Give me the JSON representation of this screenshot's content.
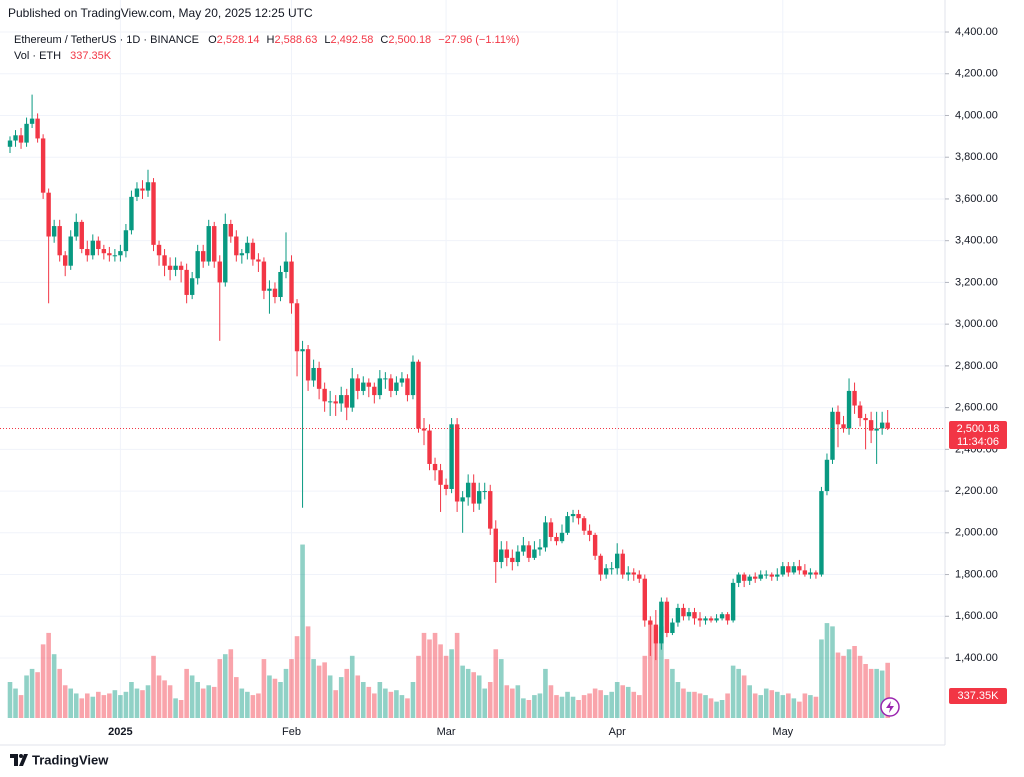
{
  "chart_data": {
    "type": "candlestick",
    "published": "Published on TradingView.com, May 20, 2025 12:25 UTC",
    "symbol": "Ethereum / TetherUS · 1D · BINANCE",
    "ohlc_letters": [
      "O",
      "H",
      "L",
      "C"
    ],
    "last_labels": [
      "2,528.14",
      "2,588.63",
      "2,492.58",
      "2,500.18"
    ],
    "change": "−27.96 (−1.11%)",
    "volume_title": "Vol · ETH",
    "volume_label": "337.35K",
    "countdown": "11:34:06",
    "brand": "TradingView",
    "up_color": "#089981",
    "down_color": "#f23645",
    "grid": true,
    "ylim": [
      1055,
      4448
    ],
    "yticks": [
      {
        "value": 1400,
        "label": "1,400.00"
      },
      {
        "value": 1600,
        "label": "1,600.00"
      },
      {
        "value": 1800,
        "label": "1,800.00"
      },
      {
        "value": 2000,
        "label": "2,000.00"
      },
      {
        "value": 2200,
        "label": "2,200.00"
      },
      {
        "value": 2400,
        "label": "2,400.00"
      },
      {
        "value": 2600,
        "label": "2,600.00"
      },
      {
        "value": 2800,
        "label": "2,800.00"
      },
      {
        "value": 3000,
        "label": "3,000.00"
      },
      {
        "value": 3200,
        "label": "3,200.00"
      },
      {
        "value": 3400,
        "label": "3,400.00"
      },
      {
        "value": 3600,
        "label": "3,600.00"
      },
      {
        "value": 3800,
        "label": "3,800.00"
      },
      {
        "value": 4000,
        "label": "4,000.00"
      },
      {
        "value": 4200,
        "label": "4,200.00"
      },
      {
        "value": 4400,
        "label": "4,400.00"
      }
    ],
    "xticks": [
      {
        "value": 20,
        "label": "2025"
      },
      {
        "value": 51,
        "label": "Feb"
      },
      {
        "value": 79,
        "label": "Mar"
      },
      {
        "value": 110,
        "label": "Apr"
      },
      {
        "value": 140,
        "label": "May"
      }
    ],
    "volume_lim": [
      0,
      2200000
    ],
    "open": [
      3850,
      3880,
      3905,
      3870,
      3960,
      3985,
      3890,
      3630,
      3420,
      3470,
      3330,
      3280,
      3420,
      3490,
      3360,
      3330,
      3400,
      3360,
      3340,
      3330,
      3330,
      3350,
      3450,
      3610,
      3650,
      3640,
      3680,
      3380,
      3330,
      3280,
      3260,
      3280,
      3260,
      3140,
      3220,
      3350,
      3300,
      3470,
      3300,
      3200,
      3480,
      3420,
      3330,
      3340,
      3390,
      3310,
      3300,
      3160,
      3170,
      3130,
      3250,
      3300,
      3100,
      2870,
      2880,
      2730,
      2790,
      2690,
      2630,
      2630,
      2620,
      2660,
      2600,
      2740,
      2680,
      2720,
      2700,
      2660,
      2740,
      2740,
      2680,
      2720,
      2740,
      2660,
      2820,
      2500,
      2490,
      2330,
      2300,
      2230,
      2210,
      2520,
      2150,
      2170,
      2240,
      2140,
      2200,
      2200,
      2020,
      1860,
      1920,
      1880,
      1860,
      1910,
      1940,
      1880,
      1920,
      1930,
      2050,
      1980,
      1960,
      2000,
      2080,
      2090,
      2070,
      2010,
      1990,
      1890,
      1800,
      1830,
      1830,
      1900,
      1800,
      1810,
      1800,
      1780,
      1580,
      1560,
      1470,
      1670,
      1520,
      1570,
      1640,
      1600,
      1620,
      1590,
      1580,
      1590,
      1580,
      1590,
      1610,
      1580,
      1760,
      1800,
      1770,
      1790,
      1780,
      1800,
      1800,
      1790,
      1800,
      1840,
      1810,
      1840,
      1820,
      1800,
      1810,
      1800,
      2200,
      2350,
      2580,
      2520,
      2500,
      2680,
      2610,
      2550,
      2540,
      2490,
      2500,
      2528.14
    ],
    "high": [
      3900,
      3930,
      3940,
      3990,
      4100,
      4010,
      3910,
      3650,
      3500,
      3500,
      3350,
      3450,
      3530,
      3500,
      3400,
      3430,
      3420,
      3380,
      3370,
      3360,
      3380,
      3480,
      3640,
      3680,
      3690,
      3740,
      3700,
      3400,
      3360,
      3320,
      3320,
      3300,
      3290,
      3250,
      3380,
      3380,
      3500,
      3490,
      3330,
      3530,
      3500,
      3450,
      3360,
      3420,
      3410,
      3340,
      3320,
      3210,
      3200,
      3280,
      3440,
      3330,
      3120,
      2920,
      2900,
      2830,
      2820,
      2720,
      2680,
      2660,
      2700,
      2690,
      2790,
      2760,
      2750,
      2740,
      2720,
      2780,
      2770,
      2760,
      2750,
      2770,
      2760,
      2850,
      2830,
      2550,
      2520,
      2360,
      2330,
      2260,
      2550,
      2550,
      2200,
      2280,
      2280,
      2240,
      2240,
      2230,
      2060,
      1960,
      1960,
      1920,
      1940,
      1980,
      1960,
      1960,
      1970,
      2080,
      2070,
      2000,
      2040,
      2100,
      2110,
      2110,
      2080,
      2040,
      2000,
      1900,
      1850,
      1860,
      1950,
      1920,
      1840,
      1830,
      1820,
      1800,
      1600,
      1630,
      1690,
      1690,
      1590,
      1660,
      1660,
      1640,
      1640,
      1620,
      1600,
      1600,
      1610,
      1620,
      1620,
      1780,
      1810,
      1810,
      1800,
      1810,
      1820,
      1820,
      1810,
      1830,
      1860,
      1860,
      1860,
      1870,
      1850,
      1830,
      1820,
      2220,
      2380,
      2600,
      2610,
      2560,
      2740,
      2720,
      2630,
      2570,
      2580,
      2580,
      2580,
      2588.63
    ],
    "low": [
      3820,
      3850,
      3840,
      3850,
      3940,
      3870,
      3600,
      3100,
      3390,
      3300,
      3230,
      3260,
      3400,
      3340,
      3300,
      3310,
      3330,
      3310,
      3300,
      3300,
      3300,
      3320,
      3430,
      3590,
      3600,
      3610,
      3350,
      3280,
      3230,
      3210,
      3230,
      3200,
      3100,
      3120,
      3190,
      3270,
      3280,
      3270,
      2920,
      3180,
      3390,
      3300,
      3290,
      3310,
      3280,
      3250,
      3120,
      3050,
      3100,
      3110,
      3220,
      3050,
      2750,
      2120,
      2680,
      2700,
      2640,
      2580,
      2560,
      2560,
      2580,
      2540,
      2580,
      2640,
      2660,
      2650,
      2620,
      2640,
      2690,
      2650,
      2660,
      2700,
      2630,
      2640,
      2480,
      2420,
      2300,
      2250,
      2100,
      2180,
      2190,
      2100,
      2000,
      2130,
      2100,
      2110,
      2160,
      1990,
      1760,
      1830,
      1840,
      1820,
      1840,
      1890,
      1860,
      1870,
      1890,
      1910,
      1960,
      1940,
      1950,
      1990,
      2050,
      2040,
      1990,
      1960,
      1870,
      1770,
      1780,
      1800,
      1800,
      1780,
      1770,
      1770,
      1760,
      1550,
      1410,
      1390,
      1440,
      1500,
      1510,
      1550,
      1580,
      1580,
      1560,
      1550,
      1560,
      1570,
      1570,
      1580,
      1560,
      1570,
      1740,
      1740,
      1750,
      1760,
      1770,
      1780,
      1770,
      1770,
      1790,
      1790,
      1800,
      1800,
      1790,
      1780,
      1780,
      1790,
      2180,
      2330,
      2410,
      2480,
      2470,
      2570,
      2510,
      2400,
      2430,
      2330,
      2470,
      2492.58
    ],
    "close": [
      3880,
      3905,
      3870,
      3960,
      3985,
      3890,
      3630,
      3420,
      3470,
      3330,
      3280,
      3420,
      3490,
      3360,
      3330,
      3400,
      3360,
      3340,
      3330,
      3330,
      3350,
      3450,
      3610,
      3650,
      3640,
      3680,
      3380,
      3330,
      3280,
      3260,
      3280,
      3260,
      3140,
      3220,
      3350,
      3300,
      3470,
      3300,
      3200,
      3480,
      3420,
      3330,
      3340,
      3390,
      3310,
      3300,
      3160,
      3170,
      3130,
      3250,
      3300,
      3100,
      2870,
      2880,
      2730,
      2790,
      2690,
      2630,
      2630,
      2620,
      2660,
      2600,
      2740,
      2680,
      2720,
      2700,
      2660,
      2740,
      2740,
      2680,
      2720,
      2740,
      2660,
      2820,
      2500,
      2490,
      2330,
      2300,
      2230,
      2210,
      2520,
      2150,
      2170,
      2240,
      2140,
      2200,
      2200,
      2020,
      1860,
      1920,
      1880,
      1860,
      1910,
      1940,
      1880,
      1920,
      1930,
      2050,
      1980,
      1960,
      2000,
      2080,
      2090,
      2070,
      2010,
      1990,
      1890,
      1800,
      1830,
      1830,
      1900,
      1800,
      1810,
      1800,
      1780,
      1580,
      1560,
      1470,
      1670,
      1520,
      1570,
      1640,
      1600,
      1620,
      1590,
      1580,
      1590,
      1580,
      1590,
      1610,
      1580,
      1760,
      1800,
      1770,
      1790,
      1780,
      1800,
      1800,
      1790,
      1800,
      1840,
      1810,
      1840,
      1820,
      1800,
      1810,
      1800,
      2200,
      2350,
      2580,
      2520,
      2500,
      2680,
      2610,
      2550,
      2540,
      2490,
      2500,
      2528.14,
      2500.18
    ],
    "volume": [
      220000,
      180000,
      140000,
      260000,
      300000,
      280000,
      450000,
      520000,
      390000,
      300000,
      200000,
      180000,
      150000,
      120000,
      150000,
      130000,
      160000,
      140000,
      150000,
      170000,
      140000,
      160000,
      220000,
      180000,
      170000,
      200000,
      380000,
      260000,
      230000,
      200000,
      120000,
      110000,
      300000,
      260000,
      220000,
      180000,
      200000,
      190000,
      360000,
      390000,
      420000,
      250000,
      180000,
      160000,
      140000,
      150000,
      360000,
      260000,
      240000,
      220000,
      300000,
      360000,
      500000,
      1060000,
      560000,
      360000,
      320000,
      340000,
      260000,
      170000,
      250000,
      300000,
      380000,
      260000,
      220000,
      190000,
      150000,
      220000,
      180000,
      160000,
      170000,
      140000,
      120000,
      220000,
      380000,
      520000,
      480000,
      520000,
      450000,
      380000,
      420000,
      520000,
      320000,
      300000,
      280000,
      260000,
      180000,
      220000,
      420000,
      360000,
      200000,
      180000,
      200000,
      120000,
      110000,
      140000,
      150000,
      300000,
      200000,
      140000,
      130000,
      160000,
      130000,
      110000,
      140000,
      150000,
      180000,
      170000,
      140000,
      160000,
      220000,
      200000,
      190000,
      160000,
      140000,
      380000,
      580000,
      560000,
      560000,
      360000,
      300000,
      220000,
      180000,
      160000,
      160000,
      150000,
      140000,
      120000,
      100000,
      110000,
      150000,
      320000,
      300000,
      260000,
      200000,
      150000,
      140000,
      180000,
      170000,
      160000,
      140000,
      150000,
      120000,
      100000,
      150000,
      140000,
      130000,
      480000,
      580000,
      560000,
      400000,
      380000,
      420000,
      440000,
      380000,
      330000,
      300000,
      300000,
      290000,
      337350
    ]
  }
}
